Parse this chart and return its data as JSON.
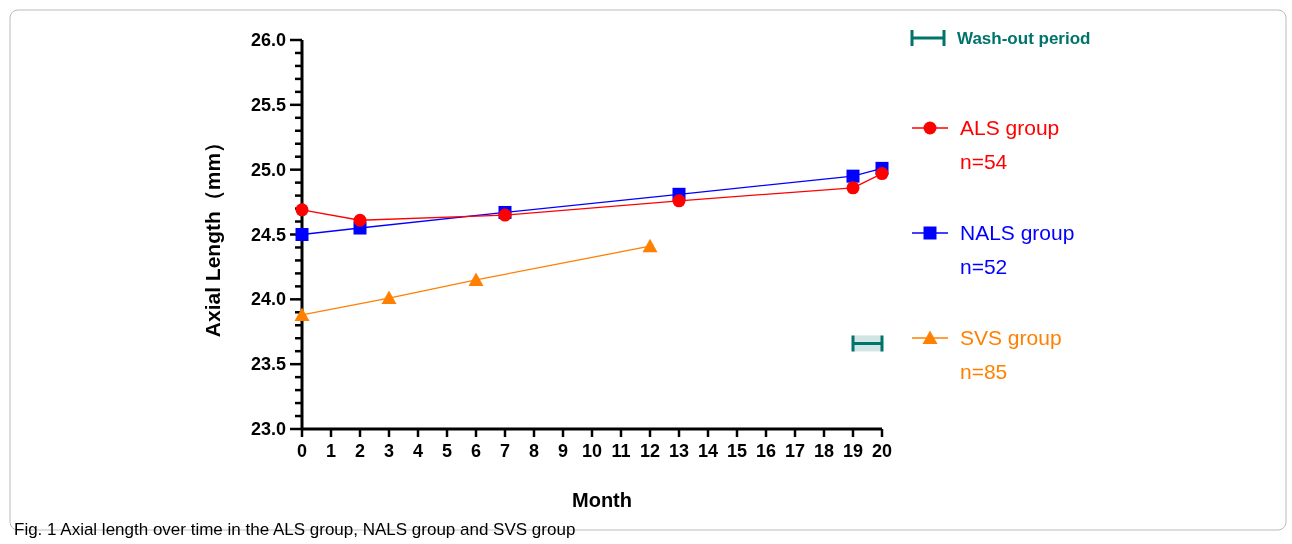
{
  "chart_data": {
    "type": "line",
    "xlabel": "Month",
    "ylabel": "Axial Length（mm）",
    "xlim": [
      0,
      20
    ],
    "xticks": [
      0,
      1,
      2,
      3,
      4,
      5,
      6,
      7,
      8,
      9,
      10,
      11,
      12,
      13,
      14,
      15,
      16,
      17,
      18,
      19,
      20
    ],
    "ylim": [
      23,
      26
    ],
    "yticks": [
      {
        "value": 23,
        "label": "23.0"
      },
      {
        "value": 23.1,
        "label": null
      },
      {
        "value": 23.2,
        "label": null
      },
      {
        "value": 23.3,
        "label": null
      },
      {
        "value": 23.4,
        "label": null
      },
      23.5,
      {
        "value": 23.6,
        "label": null
      },
      {
        "value": 23.7,
        "label": null
      },
      {
        "value": 23.8,
        "label": null
      },
      {
        "value": 23.9,
        "label": null
      },
      {
        "value": 24,
        "label": "24.0"
      },
      {
        "value": 24.1,
        "label": null
      },
      {
        "value": 24.2,
        "label": null
      },
      {
        "value": 24.3,
        "label": null
      },
      {
        "value": 24.4,
        "label": null
      },
      24.5,
      {
        "value": 24.6,
        "label": null
      },
      {
        "value": 24.7,
        "label": null
      },
      {
        "value": 24.8,
        "label": null
      },
      {
        "value": 24.9,
        "label": null
      },
      {
        "value": 25,
        "label": "25.0"
      },
      {
        "value": 25.1,
        "label": null
      },
      {
        "value": 25.2,
        "label": null
      },
      {
        "value": 25.3,
        "label": null
      },
      {
        "value": 25.4,
        "label": null
      },
      25.5,
      {
        "value": 25.6,
        "label": null
      },
      {
        "value": 25.7,
        "label": null
      },
      {
        "value": 25.8,
        "label": null
      },
      {
        "value": 25.9,
        "label": null
      },
      {
        "value": 26,
        "label": "26.0"
      }
    ],
    "series": [
      {
        "name": "ALS group\nn=54",
        "color": "#ff0000",
        "marker": "circle",
        "x": [
          0,
          2,
          7,
          13,
          19,
          20
        ],
        "values": [
          24.69,
          24.61,
          24.65,
          24.76,
          24.86,
          24.97
        ]
      },
      {
        "name": "NALS group\nn=52",
        "color": "#0000ff",
        "marker": "square",
        "x": [
          0,
          2,
          7,
          13,
          19,
          20
        ],
        "values": [
          24.5,
          24.55,
          24.67,
          24.81,
          24.95,
          25.01
        ]
      },
      {
        "name": "SVS group\nn=85",
        "color": "#ff8000",
        "marker": "triangle",
        "x": [
          0,
          3,
          6,
          12
        ],
        "values": [
          23.88,
          24.01,
          24.15,
          24.41
        ]
      }
    ],
    "bands": [
      {
        "axis": "x",
        "from": 19,
        "to": 20,
        "label": "Wash-out period",
        "color": "#00736b"
      }
    ],
    "legend": "right",
    "grid": false,
    "annotations": [
      "Fig. 1  Axial length over time in the ALS group, NALS group and SVS group"
    ]
  }
}
